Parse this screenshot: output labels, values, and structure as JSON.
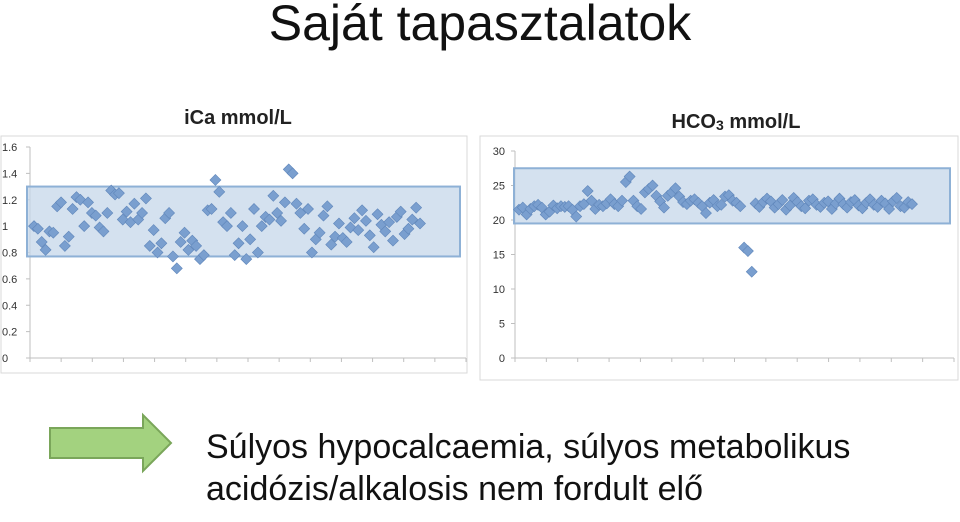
{
  "slide": {
    "title": "Saját tapasztalatok",
    "footer_line1": "Súlyos hypocalcaemia, súlyos metabolikus",
    "footer_line2": "acidózis/alkalosis nem fordult elő"
  },
  "chart_data": [
    {
      "type": "scatter",
      "title": "iCa mmol/L",
      "ylim": [
        0,
        1.6
      ],
      "ytick_labels": [
        "0",
        "0.2",
        "0.4",
        "0.6",
        "0.8",
        "1",
        "1.2",
        "1.4",
        "1.6"
      ],
      "reference_band": [
        0.77,
        1.3
      ],
      "marker_color": "#7a9fcf",
      "band_color": "#c6d7ea",
      "series": [
        {
          "x": [
            1,
            2,
            3,
            4,
            5,
            6,
            7,
            8,
            9,
            10,
            11,
            12,
            13,
            14,
            15,
            16,
            17,
            18,
            19,
            20,
            21,
            22,
            23,
            24,
            25,
            26,
            27,
            28,
            29,
            30,
            31,
            32,
            33,
            34,
            35,
            36,
            37,
            38,
            39,
            40,
            41,
            42,
            43,
            44,
            45,
            46,
            47,
            48,
            49,
            50,
            51,
            52,
            53,
            54,
            55,
            56,
            57,
            58,
            59,
            60,
            61,
            62,
            63,
            64,
            65,
            66,
            67,
            68,
            69,
            70,
            71,
            72,
            73,
            74,
            75,
            76,
            77,
            78,
            79,
            80,
            81,
            82,
            83,
            84,
            85,
            86,
            87,
            88,
            89,
            90,
            91,
            92,
            93,
            94,
            95,
            96,
            97,
            98,
            99,
            100,
            101
          ],
          "y": [
            1.0,
            0.98,
            0.88,
            0.82,
            0.96,
            0.95,
            1.15,
            1.18,
            0.85,
            0.92,
            1.13,
            1.22,
            1.2,
            1.0,
            1.18,
            1.1,
            1.08,
            0.99,
            0.96,
            1.1,
            1.27,
            1.24,
            1.25,
            1.05,
            1.11,
            1.03,
            1.17,
            1.05,
            1.1,
            1.21,
            0.85,
            0.97,
            0.8,
            0.87,
            1.06,
            1.1,
            0.77,
            0.68,
            0.88,
            0.95,
            0.82,
            0.89,
            0.85,
            0.75,
            0.78,
            1.12,
            1.13,
            1.35,
            1.26,
            1.03,
            1.0,
            1.1,
            0.78,
            0.87,
            1.0,
            0.75,
            0.9,
            1.13,
            0.8,
            1.0,
            1.07,
            1.05,
            1.23,
            1.1,
            1.04,
            1.18,
            1.43,
            1.4,
            1.17,
            1.1,
            0.98,
            1.13,
            0.8,
            0.9,
            0.95,
            1.08,
            1.15,
            0.86,
            0.92,
            1.02,
            0.91,
            0.88,
            0.99,
            1.06,
            0.97,
            1.12,
            1.04,
            0.93,
            0.84,
            1.09,
            1.01,
            0.96,
            1.03,
            0.89,
            1.07,
            1.11,
            0.94,
            0.98,
            1.05,
            1.14,
            1.02
          ]
        }
      ]
    },
    {
      "type": "scatter",
      "title": "HCO3 mmol/L",
      "title_main": "HCO",
      "title_sub": "3",
      "title_unit": " mmol/L",
      "ylim": [
        0,
        30
      ],
      "ytick_labels": [
        "0",
        "5",
        "10",
        "15",
        "20",
        "25",
        "30"
      ],
      "reference_band": [
        19.5,
        27.5
      ],
      "marker_color": "#7a9fcf",
      "band_color": "#c6d7ea",
      "series": [
        {
          "x": [
            1,
            2,
            3,
            4,
            5,
            6,
            7,
            8,
            9,
            10,
            11,
            12,
            13,
            14,
            15,
            16,
            17,
            18,
            19,
            20,
            21,
            22,
            23,
            24,
            25,
            26,
            27,
            28,
            29,
            30,
            31,
            32,
            33,
            34,
            35,
            36,
            37,
            38,
            39,
            40,
            41,
            42,
            43,
            44,
            45,
            46,
            47,
            48,
            49,
            50,
            51,
            52,
            53,
            54,
            55,
            56,
            57,
            58,
            59,
            60,
            61,
            62,
            63,
            64,
            65,
            66,
            67,
            68,
            69,
            70,
            71,
            72,
            73,
            74,
            75,
            76,
            77,
            78,
            79,
            80,
            81,
            82,
            83,
            84,
            85,
            86,
            87,
            88,
            89,
            90,
            91,
            92,
            93,
            94,
            95,
            96,
            97,
            98,
            99,
            100,
            101,
            102,
            103,
            104
          ],
          "y": [
            21.5,
            21.8,
            20.8,
            21.6,
            22.0,
            22.2,
            21.8,
            20.8,
            21.2,
            22.1,
            21.7,
            22.0,
            21.9,
            22.0,
            21.5,
            20.5,
            22.0,
            22.3,
            24.2,
            22.8,
            21.6,
            22.2,
            22.0,
            22.4,
            23.0,
            22.3,
            22.0,
            22.8,
            25.5,
            26.3,
            22.8,
            22.0,
            21.6,
            24.0,
            24.5,
            25.0,
            23.5,
            22.7,
            21.8,
            23.5,
            24.0,
            24.6,
            23.4,
            22.6,
            22.3,
            22.8,
            23.0,
            22.5,
            22.0,
            21.0,
            22.5,
            22.9,
            22.0,
            22.2,
            23.4,
            23.6,
            22.8,
            22.5,
            22.0,
            16.0,
            15.5,
            12.5,
            22.4,
            21.9,
            22.6,
            23.1,
            22.7,
            21.8,
            22.3,
            22.9,
            21.5,
            22.1,
            23.2,
            22.6,
            22.0,
            21.7,
            22.8,
            23.0,
            22.2,
            21.9,
            22.5,
            22.7,
            21.6,
            22.4,
            23.1,
            22.3,
            21.8,
            22.6,
            22.9,
            22.1,
            21.7,
            22.5,
            23.0,
            22.2,
            21.9,
            22.8,
            22.4,
            21.6,
            22.7,
            23.2,
            22.0,
            21.8,
            22.6,
            22.3
          ]
        }
      ]
    }
  ]
}
